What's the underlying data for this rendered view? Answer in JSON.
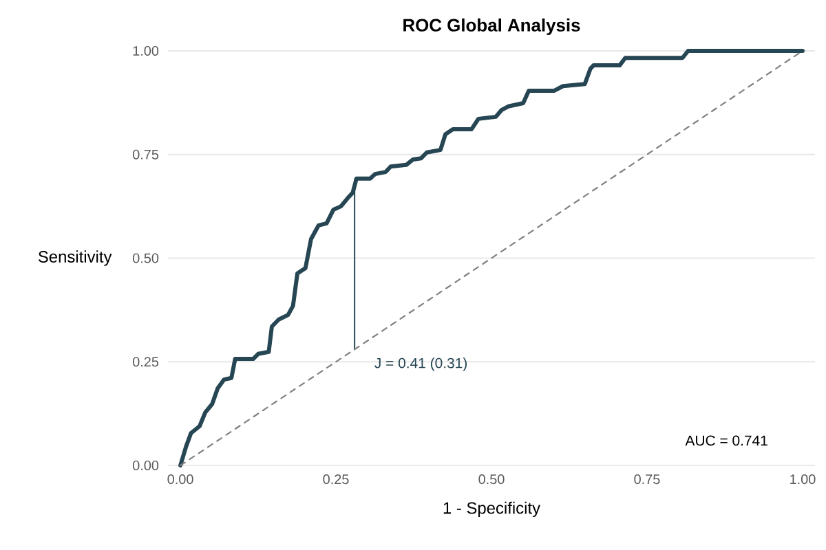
{
  "chart_data": {
    "type": "line",
    "title": "ROC Global Analysis",
    "xlabel": "1 - Specificity",
    "ylabel": "Sensitivity",
    "xlim": [
      -0.02,
      1.02
    ],
    "ylim": [
      0,
      1
    ],
    "xticks": [
      {
        "value": 0,
        "label": "0.00"
      },
      {
        "value": 0.25,
        "label": "0.25"
      },
      {
        "value": 0.5,
        "label": "0.50"
      },
      {
        "value": 0.75,
        "label": "0.75"
      },
      {
        "value": 1,
        "label": "1.00"
      }
    ],
    "yticks": [
      {
        "value": 0,
        "label": "0.00"
      },
      {
        "value": 0.25,
        "label": "0.25"
      },
      {
        "value": 0.5,
        "label": "0.50"
      },
      {
        "value": 0.75,
        "label": "0.75"
      },
      {
        "value": 1,
        "label": "1.00"
      }
    ],
    "grid": "y",
    "series": [
      {
        "color": "#264653",
        "line_style": "solid",
        "x": [
          0,
          0.009,
          0.017,
          0.031,
          0.04,
          0.051,
          0.06,
          0.07,
          0.082,
          0.088,
          0.117,
          0.125,
          0.142,
          0.147,
          0.158,
          0.173,
          0.181,
          0.188,
          0.201,
          0.21,
          0.222,
          0.235,
          0.246,
          0.258,
          0.269,
          0.277,
          0.283,
          0.305,
          0.313,
          0.33,
          0.338,
          0.363,
          0.374,
          0.387,
          0.396,
          0.418,
          0.426,
          0.438,
          0.468,
          0.479,
          0.507,
          0.516,
          0.527,
          0.551,
          0.56,
          0.601,
          0.615,
          0.65,
          0.659,
          0.664,
          0.706,
          0.715,
          0.807,
          0.816,
          1
        ],
        "values": [
          0,
          0.045,
          0.078,
          0.095,
          0.128,
          0.148,
          0.186,
          0.207,
          0.211,
          0.257,
          0.257,
          0.269,
          0.274,
          0.335,
          0.352,
          0.363,
          0.385,
          0.463,
          0.476,
          0.546,
          0.579,
          0.584,
          0.617,
          0.625,
          0.645,
          0.658,
          0.692,
          0.692,
          0.703,
          0.708,
          0.721,
          0.725,
          0.738,
          0.741,
          0.755,
          0.761,
          0.799,
          0.811,
          0.811,
          0.836,
          0.841,
          0.857,
          0.866,
          0.874,
          0.904,
          0.904,
          0.915,
          0.92,
          0.957,
          0.965,
          0.965,
          0.983,
          0.983,
          1,
          1
        ]
      },
      {
        "color": "#264653",
        "line_style": "solid",
        "x": [
          0.28,
          0.28
        ],
        "values": [
          0.28,
          0.69
        ]
      },
      {
        "color": "#808080",
        "line_style": "dashed",
        "x": [
          0,
          1
        ],
        "values": [
          0,
          1
        ]
      }
    ],
    "annotations": [
      "J = 0.41 (0.31)",
      "AUC = 0.741"
    ]
  }
}
